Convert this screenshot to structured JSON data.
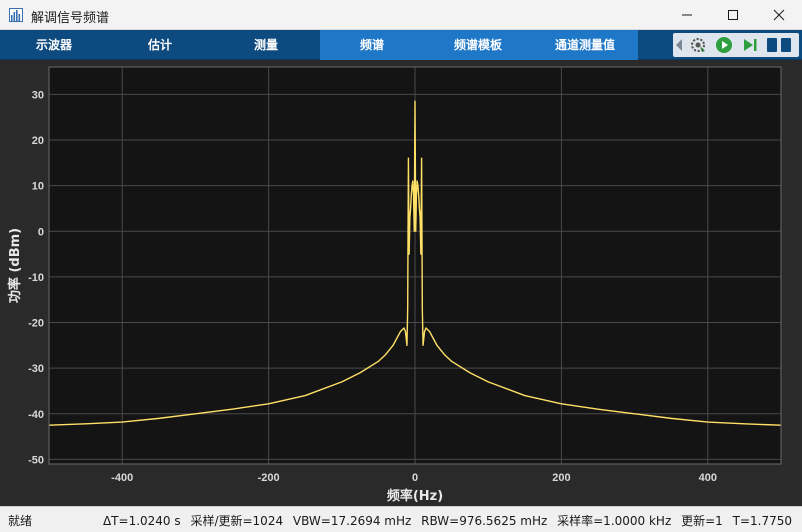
{
  "window": {
    "title": "解调信号频谱"
  },
  "toolstrip": {
    "tabs": [
      {
        "id": "oscilloscope",
        "label": "示波器"
      },
      {
        "id": "estimate",
        "label": "估计"
      },
      {
        "id": "measure",
        "label": "测量"
      },
      {
        "id": "spectrum",
        "label": "频谱",
        "active": true
      },
      {
        "id": "spectral-mask",
        "label": "频谱模板"
      },
      {
        "id": "channel-measure",
        "label": "通道测量值"
      }
    ],
    "tool_icons": [
      "settings-icon",
      "run-icon",
      "step-forward-icon"
    ]
  },
  "colors": {
    "trace": "#ffe066",
    "plot_bg": "#141414",
    "figure_bg": "#2a2a2a",
    "grid": "#4a4a4a",
    "toolstrip": "#0c4a7f",
    "active_tab": "#1f77c8"
  },
  "chart_data": {
    "type": "line",
    "title": "",
    "xlabel": "频率(Hz)",
    "ylabel": "功率 (dBm)",
    "xlim": [
      -500,
      500
    ],
    "ylim": [
      -51,
      36
    ],
    "xticks": [
      -400,
      -200,
      0,
      200,
      400
    ],
    "yticks": [
      30,
      20,
      10,
      0,
      -10,
      -20,
      -30,
      -40,
      -50
    ],
    "grid": true,
    "series": [
      {
        "x": [
          -500,
          -450,
          -400,
          -350,
          -300,
          -250,
          -200,
          -150,
          -100,
          -75,
          -50,
          -40,
          -30,
          -25,
          -20,
          -15,
          -13,
          -11,
          -10,
          -9,
          -8,
          -7,
          -6,
          -5,
          -4,
          -3,
          -2,
          -1,
          0,
          1,
          2,
          3,
          4,
          5,
          6,
          7,
          8,
          9,
          10,
          11,
          13,
          15,
          20,
          25,
          30,
          40,
          50,
          75,
          100,
          150,
          200,
          250,
          300,
          350,
          400,
          450,
          500
        ],
        "y": [
          -42.5,
          -42.2,
          -41.8,
          -41.0,
          -40.0,
          -39.0,
          -37.8,
          -36.0,
          -33.0,
          -31.0,
          -28.5,
          -27.0,
          -25.0,
          -23.5,
          -22.0,
          -21.2,
          -22.0,
          -25.0,
          -17.0,
          16.0,
          -5.0,
          3.0,
          5.0,
          8.0,
          10.0,
          11.0,
          8.0,
          0.0,
          28.5,
          0.0,
          8.0,
          11.0,
          10.0,
          8.0,
          5.0,
          3.0,
          -5.0,
          16.0,
          -17.0,
          -25.0,
          -22.0,
          -21.2,
          -22.0,
          -23.5,
          -25.0,
          -27.0,
          -28.5,
          -31.0,
          -33.0,
          -36.0,
          -37.8,
          -39.0,
          -40.0,
          -41.0,
          -41.8,
          -42.2,
          -42.5
        ]
      }
    ]
  },
  "status": {
    "left": "就绪",
    "items": [
      "ΔT=1.0240 s",
      "采样/更新=1024",
      "VBW=17.2694 mHz",
      "RBW=976.5625 mHz",
      "采样率=1.0000 kHz",
      "更新=1",
      "T=1.7750"
    ]
  }
}
